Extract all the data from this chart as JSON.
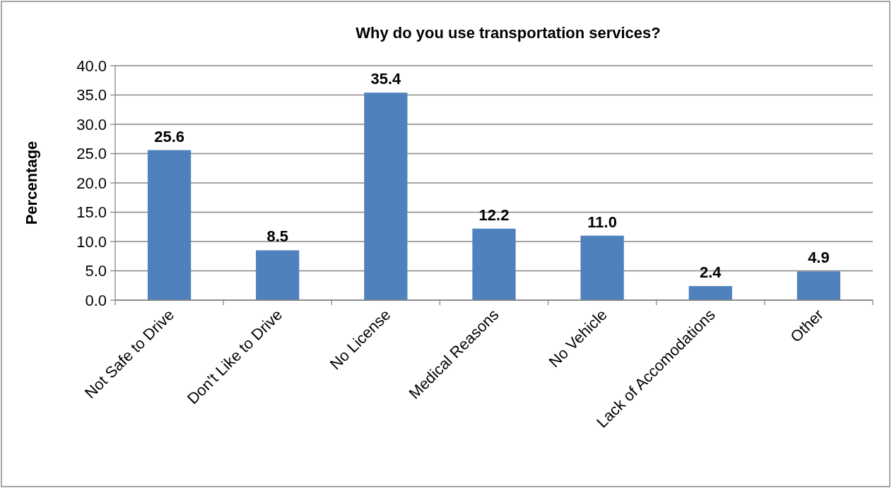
{
  "chart_data": {
    "type": "bar",
    "title": "Why do you use transportation services?",
    "ylabel": "Percentage",
    "categories": [
      "Not Safe to Drive",
      "Don't Like to Drive",
      "No License",
      "Medical Reasons",
      "No Vehicle",
      "Lack of Accomodations",
      "Other"
    ],
    "values": [
      25.6,
      8.5,
      35.4,
      12.2,
      11.0,
      2.4,
      4.9
    ],
    "value_labels": [
      "25.6",
      "8.5",
      "35.4",
      "12.2",
      "11.0",
      "2.4",
      "4.9"
    ],
    "color": "#4f81bd",
    "ylim": [
      0,
      40
    ],
    "yticks": [
      {
        "value": 0,
        "label": "0.0"
      },
      {
        "value": 5,
        "label": "5.0"
      },
      {
        "value": 10,
        "label": "10.0"
      },
      {
        "value": 15,
        "label": "15.0"
      },
      {
        "value": 20,
        "label": "20.0"
      },
      {
        "value": 25,
        "label": "25.0"
      },
      {
        "value": 30,
        "label": "30.0"
      },
      {
        "value": 35,
        "label": "35.0"
      },
      {
        "value": 40,
        "label": "40.0"
      }
    ],
    "grid": "y"
  }
}
